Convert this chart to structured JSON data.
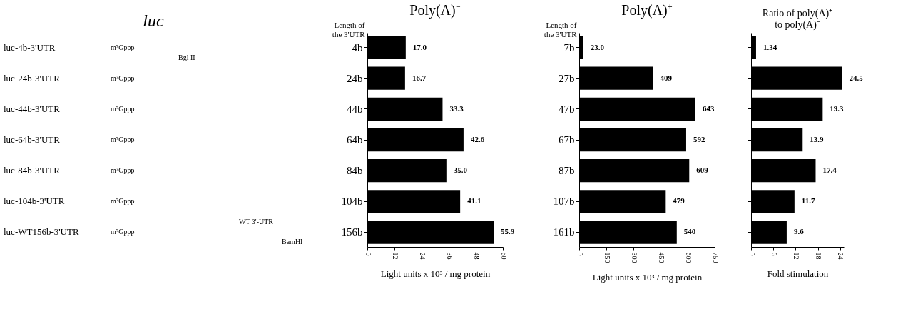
{
  "chart_data": [
    {
      "type": "other",
      "title": "luc",
      "categories": [
        "luc-4b-3'UTR",
        "luc-24b-3'UTR",
        "luc-44b-3'UTR",
        "luc-64b-3'UTR",
        "luc-84b-3'UTR",
        "luc-104b-3'UTR",
        "luc-WT156b-3'UTR"
      ],
      "annotations": [
        "m⁷Gppp",
        "m⁷Gppp",
        "m⁷Gppp",
        "m⁷Gppp",
        "m⁷Gppp",
        "m⁷Gppp",
        "m⁷Gppp",
        "Bgl II",
        "WT 3'-UTR",
        "BamHI"
      ]
    },
    {
      "type": "bar",
      "orientation": "horizontal",
      "title": "Poly(A)⁻",
      "ylabel": "Length of the 3'UTR",
      "xlabel": "Light units x 10³ / mg protein",
      "categories": [
        "4b",
        "24b",
        "44b",
        "64b",
        "84b",
        "104b",
        "156b"
      ],
      "values": [
        17.0,
        16.7,
        33.3,
        42.6,
        35.0,
        41.1,
        55.9
      ],
      "value_labels": [
        "17.0",
        "16.7",
        "33.3",
        "42.6",
        "35.0",
        "41.1",
        "55.9"
      ],
      "color": "#000000",
      "xlim": [
        0,
        60
      ],
      "xticks": [
        0,
        12,
        24,
        36,
        48,
        60
      ]
    },
    {
      "type": "bar",
      "orientation": "horizontal",
      "title": "Poly(A)⁺",
      "ylabel": "Length of the 3'UTR",
      "xlabel": "Light units x 10³ / mg protein",
      "categories": [
        "7b",
        "27b",
        "47b",
        "67b",
        "87b",
        "107b",
        "161b"
      ],
      "values": [
        23.0,
        409,
        643,
        592,
        609,
        479,
        540
      ],
      "value_labels": [
        "23.0",
        "409",
        "643",
        "592",
        "609",
        "479",
        "540"
      ],
      "color": "#000000",
      "xlim": [
        0,
        750
      ],
      "xticks": [
        0,
        150,
        300,
        450,
        600,
        750
      ]
    },
    {
      "type": "bar",
      "orientation": "horizontal",
      "title": "Ratio of poly(A)⁺ to poly(A)⁻",
      "xlabel": "Fold stimulation",
      "categories": [
        null,
        null,
        null,
        null,
        null,
        null,
        null
      ],
      "values": [
        1.34,
        24.5,
        19.3,
        13.9,
        17.4,
        11.7,
        9.6
      ],
      "value_labels": [
        "1.34",
        "24.5",
        "19.3",
        "13.9",
        "17.4",
        "11.7",
        "9.6"
      ],
      "color": "#000000",
      "xlim": [
        0,
        25
      ],
      "xticks": [
        0,
        6,
        12,
        18,
        24
      ],
      "tick_labels": "x"
    }
  ]
}
